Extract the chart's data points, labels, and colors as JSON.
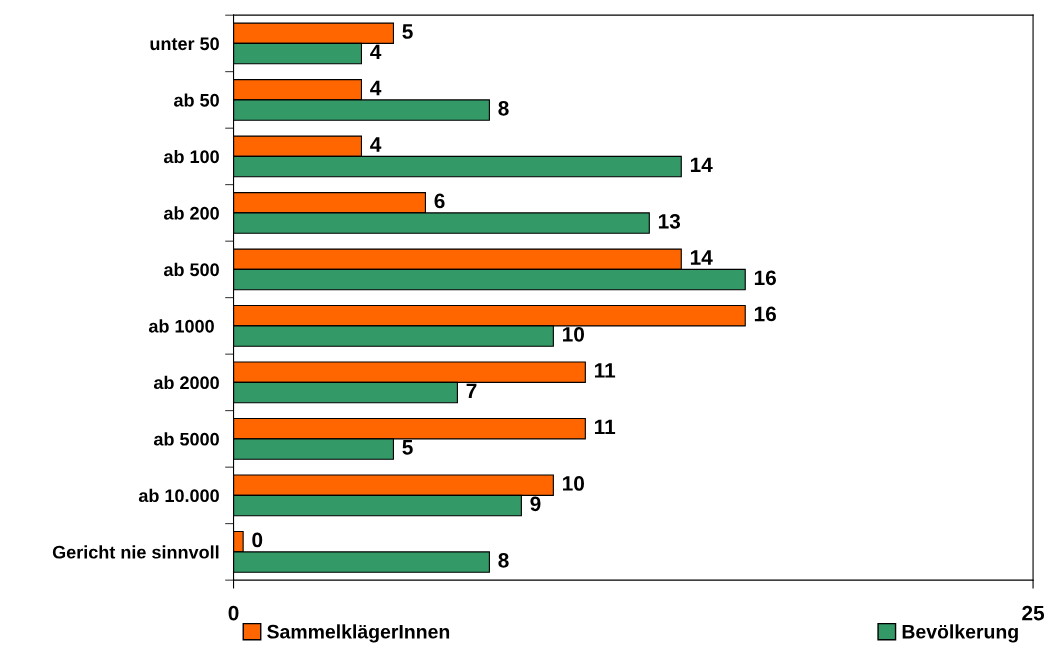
{
  "chart_data": {
    "type": "bar",
    "orientation": "horizontal",
    "categories": [
      "unter 50",
      "ab 50",
      "ab 100",
      "ab 200",
      "ab 500",
      "ab 1000 ",
      "ab 2000",
      "ab 5000",
      "ab 10.000",
      "Gericht nie sinnvoll"
    ],
    "series": [
      {
        "name": "SammelklägerInnen",
        "color": "#ff6600",
        "values": [
          5,
          4,
          4,
          6,
          14,
          16,
          11,
          11,
          10,
          0.3
        ],
        "value_labels": [
          "5",
          "4",
          "4",
          "6",
          "14",
          "16",
          "11",
          "11",
          "10",
          "0"
        ]
      },
      {
        "name": "Bevölkerung",
        "color": "#339966",
        "values": [
          4,
          8,
          14,
          13,
          16,
          10,
          7,
          5,
          9,
          8
        ],
        "value_labels": [
          "4",
          "8",
          "14",
          "13",
          "16",
          "10",
          "7",
          "5",
          "9",
          "8"
        ]
      }
    ],
    "xlim": [
      0,
      25
    ],
    "xticks": [
      0,
      25
    ],
    "grid": false,
    "legend": "bottom"
  }
}
